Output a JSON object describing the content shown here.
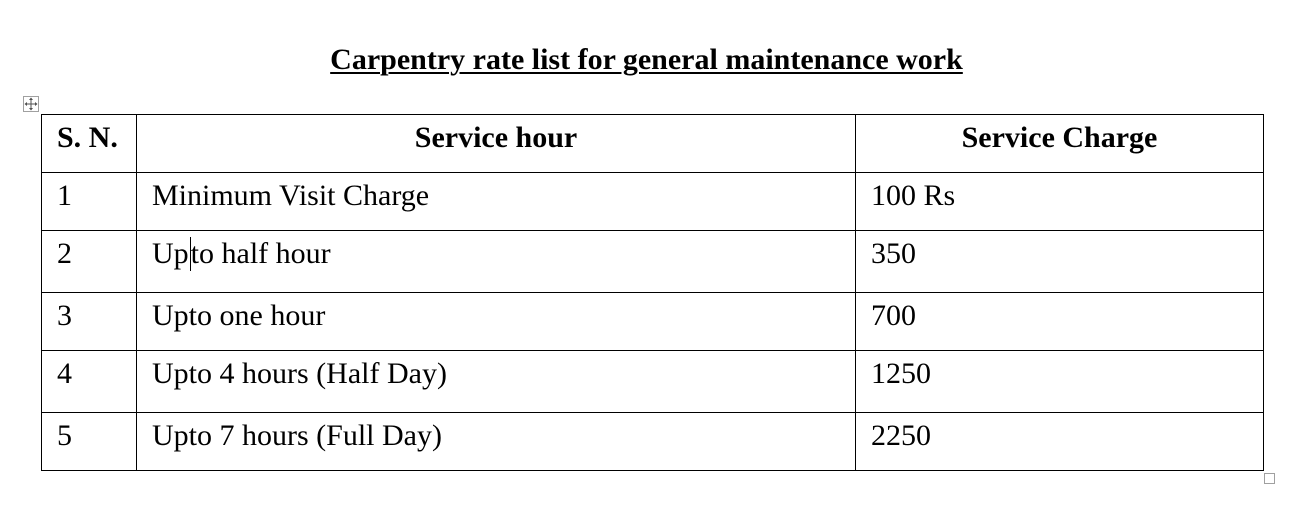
{
  "document": {
    "title": "Carpentry rate list for general maintenance work"
  },
  "table": {
    "headers": {
      "sn": "S. N.",
      "service_hour": "Service hour",
      "service_charge": "Service Charge"
    },
    "rows": [
      {
        "sn": "1",
        "service_hour": "Minimum Visit Charge",
        "service_charge": "100 Rs"
      },
      {
        "sn": "2",
        "service_hour_before_caret": "Up",
        "service_hour_after_caret": "to half hour",
        "service_charge": "350"
      },
      {
        "sn": "3",
        "service_hour": "Upto one hour",
        "service_charge": "700"
      },
      {
        "sn": "4",
        "service_hour": "Upto 4 hours (Half Day)",
        "service_charge": "1250"
      },
      {
        "sn": "5",
        "service_hour": "Upto 7 hours (Full Day)",
        "service_charge": "2250"
      }
    ]
  },
  "icons": {
    "table_move_handle": "move-arrows-icon",
    "table_resize_handle": "resize-square-icon"
  },
  "colors": {
    "text": "#000000",
    "border": "#000000",
    "handle_border": "#a0a0a0"
  }
}
